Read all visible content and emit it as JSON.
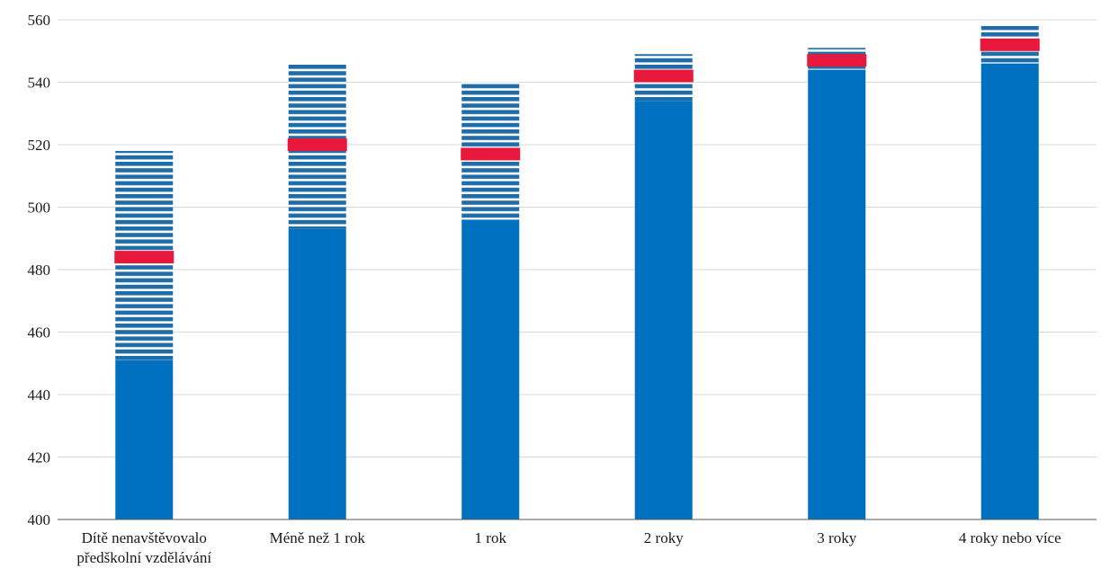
{
  "chart_data": {
    "type": "bar",
    "title": "",
    "xlabel": "",
    "ylabel": "",
    "ylim": [
      400,
      560
    ],
    "yticks": [
      400,
      420,
      440,
      460,
      480,
      500,
      520,
      540,
      560
    ],
    "grid": true,
    "legend": "none",
    "categories": [
      [
        "Dítě nenavštěvovalo",
        "předškolní vzdělávání"
      ],
      [
        "Méně než 1 rok"
      ],
      [
        "1 rok"
      ],
      [
        "2 roky"
      ],
      [
        "3 roky"
      ],
      [
        "4 roky nebo více"
      ]
    ],
    "series": [
      {
        "type": "bar-solid",
        "values": [
          451,
          493,
          496,
          534,
          544,
          546
        ]
      },
      {
        "type": "bar-striped-range",
        "low": [
          451,
          493,
          496,
          534,
          544,
          546
        ],
        "high": [
          518,
          546,
          540,
          549,
          551,
          558
        ]
      },
      {
        "type": "marker",
        "values": [
          484,
          520,
          517,
          542,
          547,
          552
        ]
      }
    ],
    "colors": {
      "bar": "#0070C0",
      "stripe_bg": "#ffffff",
      "marker": "#E8173C",
      "grid": "#D9D9D9",
      "axis": "#595959"
    }
  }
}
